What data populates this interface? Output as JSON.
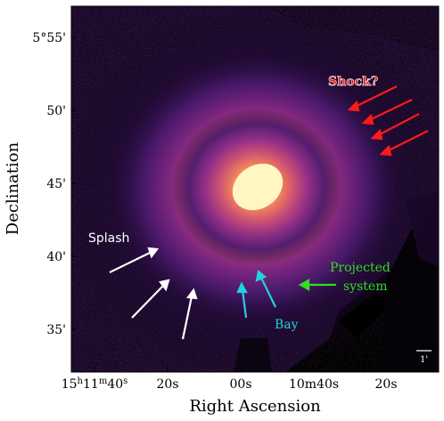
{
  "axes": {
    "xlabel": "Right Ascension",
    "ylabel": "Declination",
    "xticks": [
      {
        "label": "15h11m40s"
      },
      {
        "label": "20s"
      },
      {
        "label": "00s"
      },
      {
        "label": "10m40s"
      },
      {
        "label": "20s"
      }
    ],
    "yticks": [
      {
        "label": "5°55'"
      },
      {
        "label": "50'"
      },
      {
        "label": "45'"
      },
      {
        "label": "40'"
      },
      {
        "label": "35'"
      }
    ]
  },
  "annotations": {
    "shock": {
      "text": "Shock?",
      "color": "#ff1a1a"
    },
    "splash": {
      "text": "Splash",
      "color": "#ffffff"
    },
    "projected_line1": {
      "text": "Projected",
      "color": "#33dd22"
    },
    "projected_line2": {
      "text": "system",
      "color": "#33dd22"
    },
    "bay": {
      "text": "Bay",
      "color": "#22d0e0"
    }
  },
  "scale_bar": {
    "label": "1'"
  },
  "colormap": {
    "name": "magma",
    "background": "#000000",
    "core": "#fff8c8"
  }
}
